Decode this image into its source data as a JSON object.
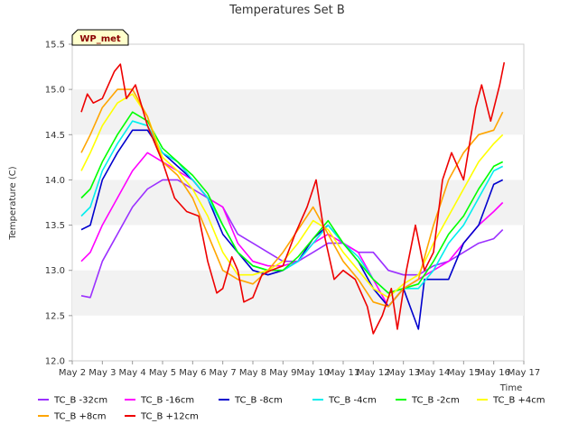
{
  "chart_data": {
    "type": "line",
    "title": "Temperatures Set B",
    "xlabel": "Time",
    "ylabel": "Temperature (C)",
    "badge": "WP_met",
    "xlim": [
      2,
      17
    ],
    "ylim": [
      12.0,
      15.5
    ],
    "x_ticks": [
      2,
      3,
      4,
      5,
      6,
      7,
      8,
      9,
      10,
      11,
      12,
      13,
      14,
      15,
      16,
      17
    ],
    "x_tick_labels": [
      "May 2",
      "May 3",
      "May 4",
      "May 5",
      "May 6",
      "May 7",
      "May 8",
      "May 9",
      "May 10",
      "May 11",
      "May 12",
      "May 13",
      "May 14",
      "May 15",
      "May 16",
      "May 17"
    ],
    "y_ticks": [
      12.0,
      12.5,
      13.0,
      13.5,
      14.0,
      14.5,
      15.0,
      15.5
    ],
    "y_tick_labels": [
      "12.0",
      "12.5",
      "13.0",
      "13.5",
      "14.0",
      "14.5",
      "15.0",
      "15.5"
    ],
    "grid": "horizontal bands",
    "legend_position": "bottom",
    "series": [
      {
        "name": "TC_B -32cm",
        "color": "#9b30ff",
        "x": [
          2.3,
          2.6,
          3.0,
          3.5,
          4.0,
          4.5,
          5.0,
          5.5,
          6.0,
          6.5,
          7.0,
          7.5,
          8.0,
          8.5,
          9.0,
          9.5,
          10.0,
          10.5,
          11.0,
          11.5,
          12.0,
          12.5,
          13.0,
          13.5,
          14.0,
          14.5,
          15.0,
          15.5,
          16.0,
          16.3
        ],
        "y": [
          12.72,
          12.7,
          13.1,
          13.4,
          13.7,
          13.9,
          14.0,
          14.0,
          13.9,
          13.8,
          13.7,
          13.4,
          13.3,
          13.2,
          13.1,
          13.1,
          13.2,
          13.3,
          13.3,
          13.2,
          13.2,
          13.0,
          12.95,
          12.95,
          13.05,
          13.1,
          13.2,
          13.3,
          13.35,
          13.45
        ]
      },
      {
        "name": "TC_B -16cm",
        "color": "#ff00ff",
        "x": [
          2.3,
          2.6,
          3.0,
          3.5,
          4.0,
          4.5,
          5.0,
          5.5,
          6.0,
          6.5,
          7.0,
          7.5,
          8.0,
          8.5,
          9.0,
          9.5,
          10.0,
          10.5,
          11.0,
          11.5,
          12.0,
          12.5,
          13.0,
          13.5,
          14.0,
          14.5,
          15.0,
          15.5,
          16.0,
          16.3
        ],
        "y": [
          13.1,
          13.2,
          13.5,
          13.8,
          14.1,
          14.3,
          14.2,
          14.1,
          14.0,
          13.8,
          13.7,
          13.3,
          13.1,
          13.05,
          13.05,
          13.1,
          13.3,
          13.4,
          13.3,
          13.2,
          12.9,
          12.6,
          12.8,
          12.9,
          13.0,
          13.1,
          13.3,
          13.5,
          13.65,
          13.75
        ]
      },
      {
        "name": "TC_B -8cm",
        "color": "#0000cd",
        "x": [
          2.3,
          2.6,
          3.0,
          3.5,
          4.0,
          4.5,
          5.0,
          5.5,
          6.0,
          6.5,
          7.0,
          7.5,
          8.0,
          8.5,
          9.0,
          9.5,
          10.0,
          10.5,
          11.0,
          11.5,
          12.0,
          12.5,
          13.0,
          13.5,
          13.7,
          14.0,
          14.5,
          15.0,
          15.5,
          16.0,
          16.3
        ],
        "y": [
          13.45,
          13.5,
          14.0,
          14.3,
          14.55,
          14.55,
          14.3,
          14.15,
          14.0,
          13.8,
          13.4,
          13.2,
          13.0,
          12.95,
          13.0,
          13.1,
          13.35,
          13.5,
          13.3,
          13.1,
          12.8,
          12.6,
          12.8,
          12.35,
          12.9,
          12.9,
          12.9,
          13.3,
          13.5,
          13.95,
          14.0
        ]
      },
      {
        "name": "TC_B -4cm",
        "color": "#00eeee",
        "x": [
          2.3,
          2.6,
          3.0,
          3.5,
          4.0,
          4.5,
          5.0,
          5.5,
          6.0,
          6.5,
          7.0,
          7.5,
          8.0,
          8.5,
          9.0,
          9.5,
          10.0,
          10.5,
          11.0,
          11.5,
          12.0,
          12.5,
          13.0,
          13.5,
          14.0,
          14.5,
          15.0,
          15.5,
          16.0,
          16.3
        ],
        "y": [
          13.6,
          13.7,
          14.1,
          14.4,
          14.65,
          14.6,
          14.3,
          14.2,
          14.0,
          13.8,
          13.5,
          13.2,
          13.05,
          13.0,
          13.0,
          13.1,
          13.3,
          13.5,
          13.3,
          13.15,
          12.9,
          12.75,
          12.8,
          12.8,
          13.0,
          13.3,
          13.5,
          13.8,
          14.1,
          14.15
        ]
      },
      {
        "name": "TC_B -2cm",
        "color": "#00ff00",
        "x": [
          2.3,
          2.6,
          3.0,
          3.5,
          4.0,
          4.5,
          5.0,
          5.5,
          6.0,
          6.5,
          7.0,
          7.5,
          8.0,
          8.5,
          9.0,
          9.5,
          10.0,
          10.5,
          11.0,
          11.5,
          12.0,
          12.5,
          13.0,
          13.5,
          14.0,
          14.5,
          15.0,
          15.5,
          16.0,
          16.3
        ],
        "y": [
          13.8,
          13.9,
          14.2,
          14.5,
          14.75,
          14.65,
          14.35,
          14.2,
          14.05,
          13.85,
          13.5,
          13.2,
          13.05,
          13.0,
          13.0,
          13.15,
          13.35,
          13.55,
          13.3,
          13.1,
          12.9,
          12.75,
          12.8,
          12.85,
          13.1,
          13.4,
          13.6,
          13.9,
          14.15,
          14.2
        ]
      },
      {
        "name": "TC_B +4cm",
        "color": "#ffff00",
        "x": [
          2.3,
          2.6,
          3.0,
          3.5,
          4.0,
          4.5,
          5.0,
          5.5,
          6.0,
          6.5,
          7.0,
          7.5,
          8.0,
          8.5,
          9.0,
          9.5,
          10.0,
          10.5,
          11.0,
          11.5,
          12.0,
          12.5,
          13.0,
          13.5,
          14.0,
          14.5,
          15.0,
          15.5,
          16.0,
          16.3
        ],
        "y": [
          14.1,
          14.3,
          14.6,
          14.85,
          14.95,
          14.7,
          14.25,
          14.1,
          13.9,
          13.6,
          13.2,
          12.95,
          12.95,
          13.0,
          13.1,
          13.3,
          13.55,
          13.45,
          13.2,
          13.0,
          12.8,
          12.7,
          12.85,
          12.95,
          13.3,
          13.6,
          13.9,
          14.2,
          14.4,
          14.5
        ]
      },
      {
        "name": "TC_B +8cm",
        "color": "#ffa500",
        "x": [
          2.3,
          2.6,
          3.0,
          3.5,
          4.0,
          4.5,
          5.0,
          5.5,
          6.0,
          6.5,
          7.0,
          7.5,
          8.0,
          8.5,
          9.0,
          9.5,
          10.0,
          10.5,
          11.0,
          11.5,
          12.0,
          12.5,
          13.0,
          13.5,
          14.0,
          14.5,
          15.0,
          15.5,
          16.0,
          16.3
        ],
        "y": [
          14.3,
          14.5,
          14.8,
          15.0,
          15.0,
          14.7,
          14.2,
          14.05,
          13.8,
          13.4,
          13.0,
          12.9,
          12.85,
          13.0,
          13.2,
          13.45,
          13.7,
          13.4,
          13.1,
          12.9,
          12.65,
          12.6,
          12.8,
          12.9,
          13.5,
          14.0,
          14.3,
          14.5,
          14.55,
          14.75
        ]
      },
      {
        "name": "TC_B +12cm",
        "color": "#ee0000",
        "x": [
          2.3,
          2.5,
          2.7,
          3.0,
          3.4,
          3.6,
          3.8,
          4.1,
          4.5,
          5.0,
          5.4,
          5.8,
          6.2,
          6.5,
          6.8,
          7.0,
          7.3,
          7.5,
          7.7,
          8.0,
          8.3,
          8.6,
          9.0,
          9.4,
          9.8,
          10.1,
          10.4,
          10.7,
          11.0,
          11.4,
          11.8,
          12.0,
          12.3,
          12.6,
          12.8,
          13.1,
          13.4,
          13.7,
          14.0,
          14.3,
          14.6,
          15.0,
          15.4,
          15.6,
          15.9,
          16.2,
          16.35
        ],
        "y": [
          14.75,
          14.95,
          14.85,
          14.9,
          15.2,
          15.28,
          14.9,
          15.05,
          14.6,
          14.2,
          13.8,
          13.65,
          13.6,
          13.1,
          12.75,
          12.8,
          13.15,
          13.0,
          12.65,
          12.7,
          12.95,
          13.0,
          13.05,
          13.4,
          13.7,
          14.0,
          13.35,
          12.9,
          13.0,
          12.9,
          12.6,
          12.3,
          12.5,
          12.8,
          12.35,
          13.0,
          13.5,
          13.0,
          13.2,
          14.0,
          14.3,
          14.0,
          14.8,
          15.05,
          14.65,
          15.05,
          15.3
        ]
      }
    ]
  }
}
